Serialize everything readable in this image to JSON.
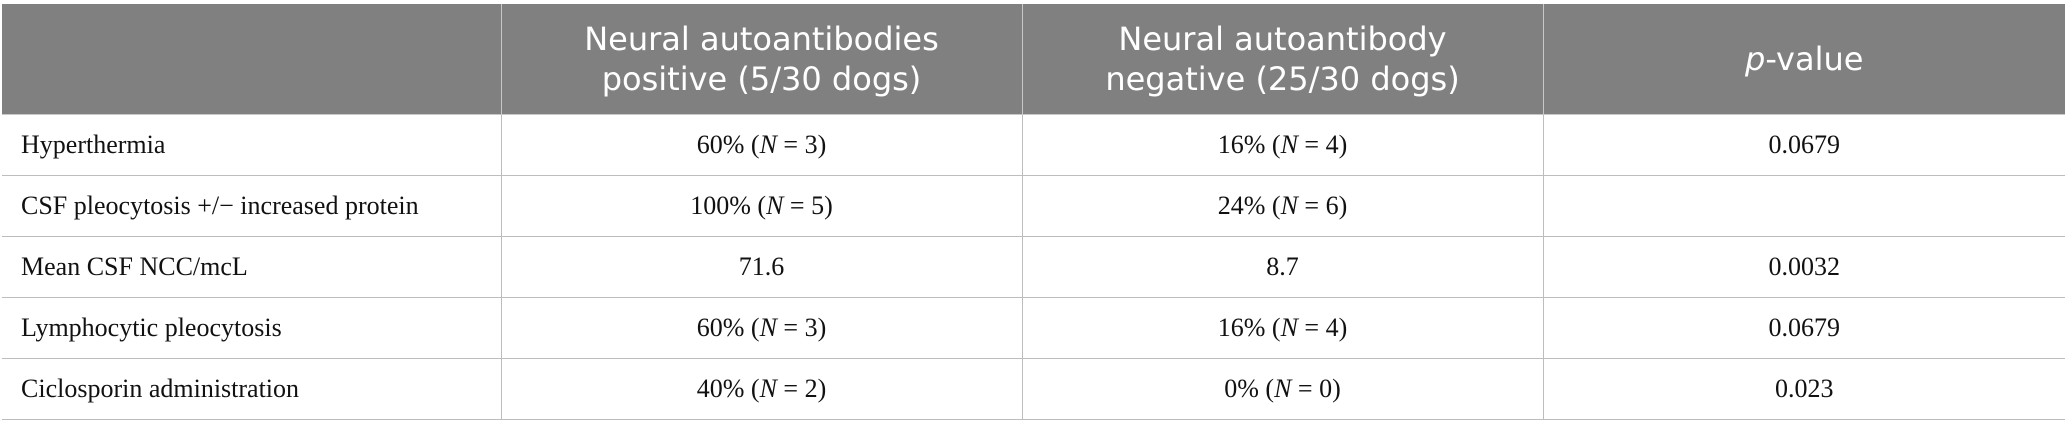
{
  "table": {
    "headers": [
      {
        "text": ""
      },
      {
        "line1": "Neural autoantibodies",
        "line2": "positive (5/30 dogs)"
      },
      {
        "line1": "Neural autoantibody",
        "line2": "negative (25/30 dogs)"
      },
      {
        "italic": "p",
        "rest": "-value"
      }
    ],
    "rows": [
      {
        "label": "Hyperthermia",
        "pos": {
          "pct": "60% (",
          "n_var": "N",
          "n_val": " = 3)"
        },
        "neg": {
          "pct": "16% (",
          "n_var": "N",
          "n_val": " = 4)"
        },
        "p": "0.0679"
      },
      {
        "label": "CSF pleocytosis +/− increased protein",
        "pos": {
          "pct": "100% (",
          "n_var": "N",
          "n_val": " = 5)"
        },
        "neg": {
          "pct": "24% (",
          "n_var": "N",
          "n_val": " = 6)"
        },
        "p": ""
      },
      {
        "label": "Mean CSF NCC/mcL",
        "pos": {
          "plain": "71.6"
        },
        "neg": {
          "plain": "8.7"
        },
        "p": "0.0032"
      },
      {
        "label": "Lymphocytic pleocytosis",
        "pos": {
          "pct": "60% (",
          "n_var": "N",
          "n_val": " = 3)"
        },
        "neg": {
          "pct": "16% (",
          "n_var": "N",
          "n_val": " = 4)"
        },
        "p": "0.0679"
      },
      {
        "label": "Ciclosporin administration",
        "pos": {
          "pct": "40% (",
          "n_var": "N",
          "n_val": " = 2)"
        },
        "neg": {
          "pct": "0% (",
          "n_var": "N",
          "n_val": " = 0)"
        },
        "p": "0.023"
      }
    ]
  },
  "colors": {
    "header_bg": "#808080",
    "header_text": "#ffffff",
    "grid": "#bdbdbd"
  }
}
